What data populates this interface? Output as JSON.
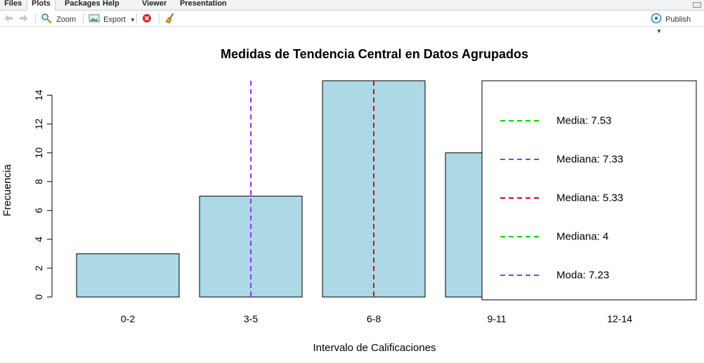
{
  "tabs": [
    {
      "label": "Files"
    },
    {
      "label": "Plots"
    },
    {
      "label": "Packages"
    },
    {
      "label": "Help"
    },
    {
      "label": "Viewer"
    },
    {
      "label": "Presentation"
    }
  ],
  "toolbar": {
    "zoom_label": "Zoom",
    "export_label": "Export",
    "publish_label": "Publish"
  },
  "colors": {
    "bar_fill": "#add8e6",
    "media": "#00e000",
    "mediana": "#9b30ff",
    "mediana_red": "#ee0000"
  },
  "chart_data": {
    "type": "bar",
    "title": "Medidas de Tendencia Central en Datos Agrupados",
    "xlabel": "Intervalo de Calificaciones",
    "ylabel": "Frecuencia",
    "categories": [
      "0-2",
      "3-5",
      "6-8",
      "9-11",
      "12-14"
    ],
    "values": [
      3,
      7,
      15,
      10,
      0
    ],
    "ylim": [
      0,
      15
    ],
    "yticks": [
      "0",
      "2",
      "4",
      "6",
      "8",
      "10",
      "12",
      "14"
    ],
    "vlines": [
      {
        "at_category": 1,
        "color": "#9b30ff"
      },
      {
        "at_category": 2,
        "color": "#ee0000"
      }
    ],
    "legend": {
      "placement": "right",
      "entries": [
        {
          "label": "Media: 7.53",
          "color": "#00e000"
        },
        {
          "label": "Mediana: 7.33",
          "color": "#9b30ff"
        },
        {
          "label": "Mediana: 5.33",
          "color": "#ee0000"
        },
        {
          "label": "Mediana: 4",
          "color": "#00e000"
        },
        {
          "label": "Moda: 7.23",
          "color": "#9b30ff"
        }
      ]
    }
  }
}
